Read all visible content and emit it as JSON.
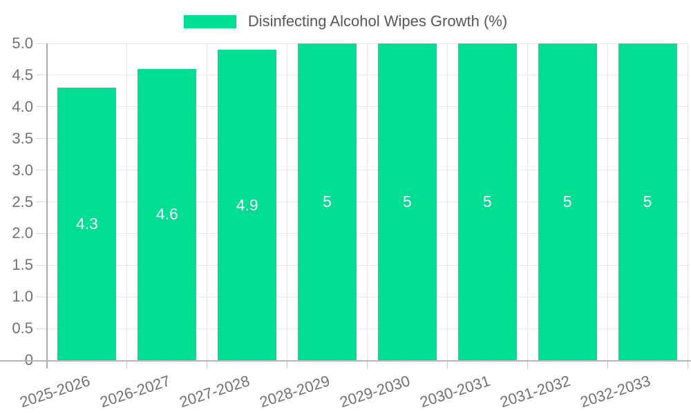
{
  "legend": {
    "label": "Disinfecting Alcohol Wipes Growth (%)"
  },
  "chart_data": {
    "type": "bar",
    "title": "Disinfecting Alcohol Wipes Growth (%)",
    "categories": [
      "2025-2026",
      "2026-2027",
      "2027-2028",
      "2028-2029",
      "2029-2030",
      "2030-2031",
      "2031-2032",
      "2032-2033"
    ],
    "values": [
      4.3,
      4.6,
      4.9,
      5,
      5,
      5,
      5,
      5
    ],
    "bar_labels": [
      "4.3",
      "4.6",
      "4.9",
      "5",
      "5",
      "5",
      "5",
      "5"
    ],
    "xlabel": "",
    "ylabel": "",
    "ylim": [
      0,
      5
    ],
    "ytick_step": 0.5,
    "ytick_labels": [
      "0",
      "0.5",
      "1.0",
      "1.5",
      "2.0",
      "2.5",
      "3.0",
      "3.5",
      "4.0",
      "4.5",
      "5.0"
    ],
    "grid": true,
    "legend_position": "top-center",
    "x_label_rotation_deg": -18
  },
  "colors": {
    "bar": "#00de92",
    "value_label": "#ffffff",
    "grid": "#e7e7e7",
    "axis_line": "#b6b6b6",
    "tick_label": "#6e7276",
    "legend_text": "#54585c",
    "background": "#ffffff"
  }
}
